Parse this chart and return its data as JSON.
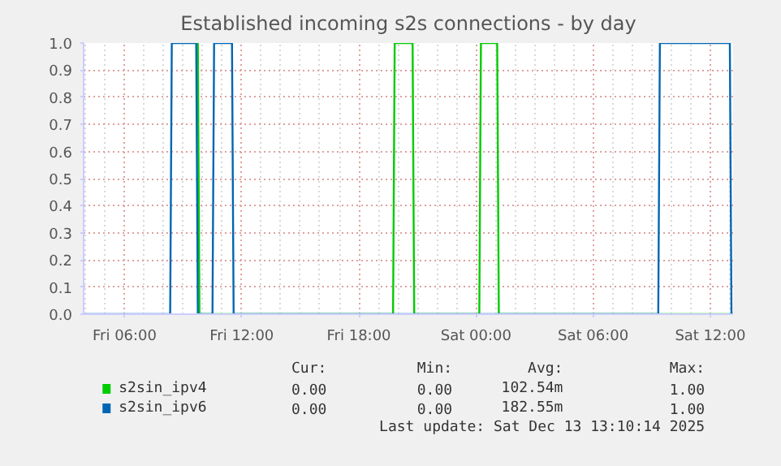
{
  "chart_data": {
    "type": "line",
    "title": "Established incoming s2s connections - by day",
    "xlim": [
      "2025-12-12T03:54",
      "2025-12-13T13:10"
    ],
    "xticks": [
      {
        "value": "2025-12-12T06:00",
        "label": "Fri 06:00"
      },
      {
        "value": "2025-12-12T12:00",
        "label": "Fri 12:00"
      },
      {
        "value": "2025-12-12T18:00",
        "label": "Fri 18:00"
      },
      {
        "value": "2025-12-13T00:00",
        "label": "Sat 00:00"
      },
      {
        "value": "2025-12-13T06:00",
        "label": "Sat 06:00"
      },
      {
        "value": "2025-12-13T12:00",
        "label": "Sat 12:00"
      }
    ],
    "ylim": [
      0,
      1.0
    ],
    "yticks": [
      {
        "value": 0,
        "label": "0.0"
      },
      {
        "value": 0.1,
        "label": "0.1"
      },
      {
        "value": 0.2,
        "label": "0.2"
      },
      {
        "value": 0.3,
        "label": "0.3"
      },
      {
        "value": 0.4,
        "label": "0.4"
      },
      {
        "value": 0.5,
        "label": "0.5"
      },
      {
        "value": 0.6,
        "label": "0.6"
      },
      {
        "value": 0.7,
        "label": "0.7"
      },
      {
        "value": 0.8,
        "label": "0.8"
      },
      {
        "value": 0.9,
        "label": "0.9"
      },
      {
        "value": 1.0,
        "label": "1.0"
      }
    ],
    "grid": true,
    "legend": "bottom",
    "marker": "none",
    "line_style": "solid",
    "series": [
      {
        "name": "s2sin_ipv4",
        "color": "#00cc00",
        "x": [
          "2025-12-12T09:45",
          "2025-12-12T09:50",
          "2025-12-12T19:45",
          "2025-12-12T19:50",
          "2025-12-12T20:45",
          "2025-12-12T20:50",
          "2025-12-13T00:10",
          "2025-12-13T00:15",
          "2025-12-13T01:05",
          "2025-12-13T01:10",
          "2025-12-13T13:10"
        ],
        "values": [
          1,
          0,
          0,
          1,
          1,
          0,
          0,
          1,
          1,
          0,
          0
        ]
      },
      {
        "name": "s2sin_ipv6",
        "color": "#0066b3",
        "x": [
          "2025-12-12T03:54",
          "2025-12-12T08:20",
          "2025-12-12T08:25",
          "2025-12-12T09:40",
          "2025-12-12T09:45",
          "2025-12-12T10:30",
          "2025-12-12T10:35",
          "2025-12-12T11:30",
          "2025-12-12T11:35",
          "2025-12-13T09:20",
          "2025-12-13T09:25",
          "2025-12-13T13:00",
          "2025-12-13T13:05",
          "2025-12-13T13:10"
        ],
        "values": [
          0,
          0,
          1,
          1,
          0,
          0,
          1,
          1,
          0,
          0,
          1,
          1,
          0,
          0
        ]
      }
    ],
    "annotations": [
      "Cur:",
      "Min:",
      "Avg:",
      "Max:",
      "0.00",
      "0.00",
      "102.54m",
      "1.00",
      "0.00",
      "0.00",
      "182.55m",
      "1.00",
      "Last update: Sat Dec 13 13:10:14 2025"
    ]
  }
}
